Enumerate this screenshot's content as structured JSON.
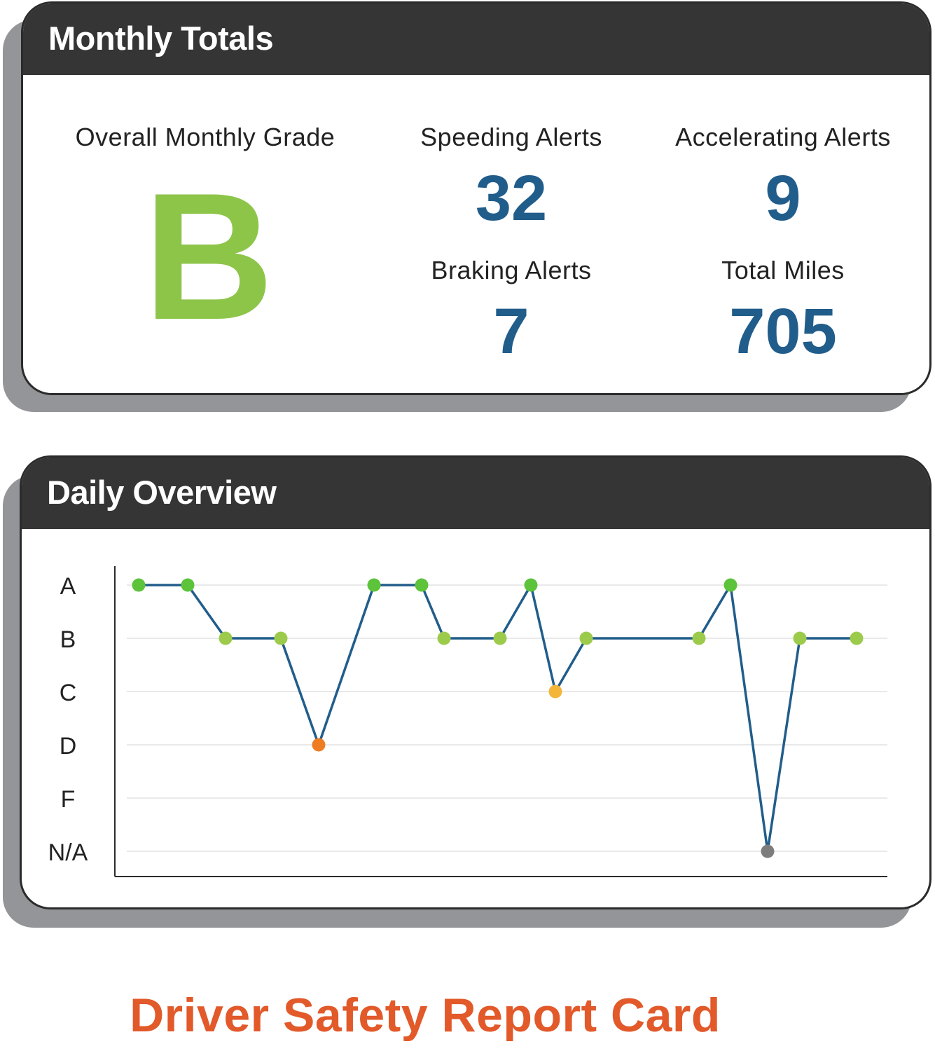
{
  "monthly_totals": {
    "title": "Monthly Totals",
    "overall_grade_label": "Overall Monthly Grade",
    "overall_grade": "B",
    "speeding_label": "Speeding Alerts",
    "speeding_value": "32",
    "accelerating_label": "Accelerating Alerts",
    "accelerating_value": "9",
    "braking_label": "Braking Alerts",
    "braking_value": "7",
    "miles_label": "Total Miles",
    "miles_value": "705"
  },
  "daily_overview": {
    "title": "Daily Overview"
  },
  "chart_data": {
    "type": "line",
    "title": "Daily Overview",
    "xlabel": "",
    "ylabel": "",
    "y_categories": [
      "A",
      "B",
      "C",
      "D",
      "F",
      "N/A"
    ],
    "x": [
      1,
      2,
      3,
      4,
      5,
      6,
      7,
      8,
      9,
      10,
      11,
      12,
      13,
      14,
      15,
      16,
      17
    ],
    "values": [
      "A",
      "A",
      "B",
      "B",
      "D",
      "A",
      "A",
      "B",
      "B",
      "A",
      "C",
      "B",
      "B",
      "A",
      "N/A",
      "B",
      "B"
    ],
    "grid": true,
    "line_color": "#215d8b",
    "grade_colors": {
      "A": "#5cc33a",
      "B": "#9ccb4c",
      "C": "#f3b53a",
      "D": "#ee7d22",
      "F": "#d9432a",
      "N/A": "#7d7d7d"
    }
  },
  "footer": {
    "title": "Driver Safety Report Card"
  },
  "colors": {
    "header_bg": "#353535",
    "shadow": "#939598",
    "grade_green": "#8dc549",
    "value_blue": "#215d8b",
    "footer_orange": "#e2592a"
  }
}
